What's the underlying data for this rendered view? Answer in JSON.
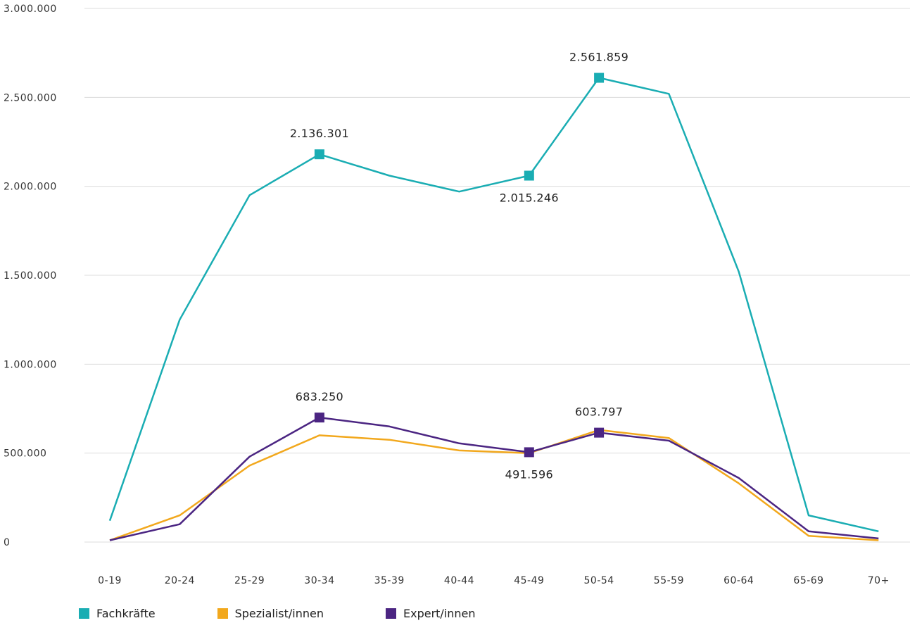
{
  "chart_data": {
    "type": "line",
    "categories": [
      "0-19",
      "20-24",
      "25-29",
      "30-34",
      "35-39",
      "40-44",
      "45-49",
      "50-54",
      "55-59",
      "60-64",
      "65-69",
      "70+"
    ],
    "ylim": [
      0,
      3000000
    ],
    "y_ticks": [
      {
        "value": 0,
        "label": "0"
      },
      {
        "value": 500000,
        "label": "500.000"
      },
      {
        "value": 1000000,
        "label": "1.000.000"
      },
      {
        "value": 1500000,
        "label": "1.500.000"
      },
      {
        "value": 2000000,
        "label": "2.000.000"
      },
      {
        "value": 2500000,
        "label": "2.500.000"
      },
      {
        "value": 3000000,
        "label": "3.000.000"
      }
    ],
    "grid": true,
    "legend_position": "bottom-left",
    "series": [
      {
        "name": "Fachkräfte",
        "color": "#1aadb3",
        "values": [
          120000,
          1250000,
          1950000,
          2180000,
          2060000,
          1970000,
          2060000,
          2610000,
          2520000,
          1520000,
          150000,
          60000
        ],
        "markers": [
          3,
          6,
          7
        ],
        "annotations": [
          {
            "index": 3,
            "label": "2.136.301",
            "pos": "above"
          },
          {
            "index": 6,
            "label": "2.015.246",
            "pos": "below"
          },
          {
            "index": 7,
            "label": "2.561.859",
            "pos": "above"
          }
        ]
      },
      {
        "name": "Spezialist/innen",
        "color": "#f2a81d",
        "values": [
          10000,
          150000,
          430000,
          600000,
          575000,
          515000,
          500000,
          630000,
          585000,
          330000,
          35000,
          10000
        ],
        "markers": [],
        "annotations": []
      },
      {
        "name": "Expert/innen",
        "color": "#4b2582",
        "values": [
          10000,
          100000,
          480000,
          700000,
          650000,
          555000,
          505000,
          615000,
          570000,
          360000,
          60000,
          20000
        ],
        "markers": [
          3,
          6,
          7
        ],
        "annotations": [
          {
            "index": 3,
            "label": "683.250",
            "pos": "above"
          },
          {
            "index": 6,
            "label": "491.596",
            "pos": "below"
          },
          {
            "index": 7,
            "label": "603.797",
            "pos": "above"
          }
        ]
      }
    ]
  }
}
